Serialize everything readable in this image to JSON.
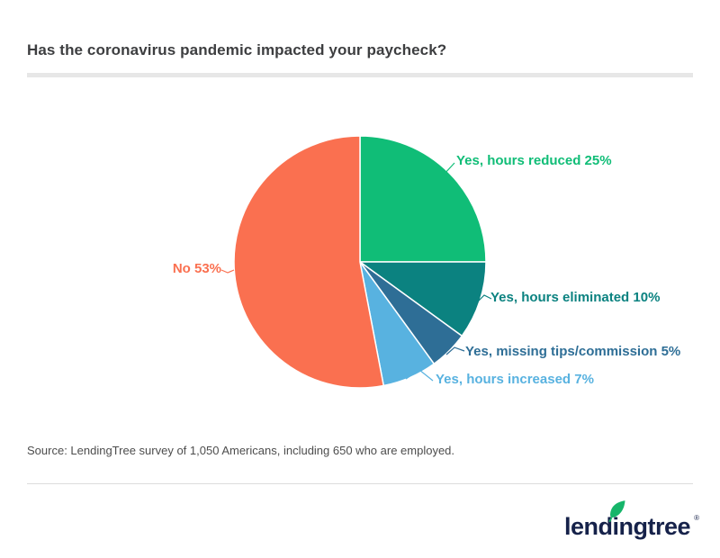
{
  "page": {
    "title": "Has the coronavirus pandemic impacted your paycheck?",
    "source": "Source: LendingTree survey of 1,050 Americans, including 650 who are employed.",
    "logo_text": "lendingtree",
    "logo_registered": "®"
  },
  "colors": {
    "background": "#ffffff",
    "title_text": "#3d3e40",
    "source_text": "#4d4d4d",
    "divider_thick": "#e7e7e7",
    "divider_thin": "#dcdcdc",
    "logo_navy": "#16224a",
    "leaf_green": "#16b56a"
  },
  "chart_data": {
    "type": "pie",
    "title": "Has the coronavirus pandemic impacted your paycheck?",
    "unit": "%",
    "direction": "clockwise",
    "start_angle": "12 o'clock",
    "legend": "none",
    "label_format": "{label} {value}%",
    "slices": [
      {
        "label": "Yes, hours reduced",
        "value": 25,
        "color": "#10bd77"
      },
      {
        "label": "Yes, hours eliminated",
        "value": 10,
        "color": "#0b8280"
      },
      {
        "label": "Yes, missing tips/commission",
        "value": 5,
        "color": "#2e6e96"
      },
      {
        "label": "Yes, hours increased",
        "value": 7,
        "color": "#58b2e0"
      },
      {
        "label": "No",
        "value": 53,
        "color": "#fa7050"
      }
    ]
  }
}
